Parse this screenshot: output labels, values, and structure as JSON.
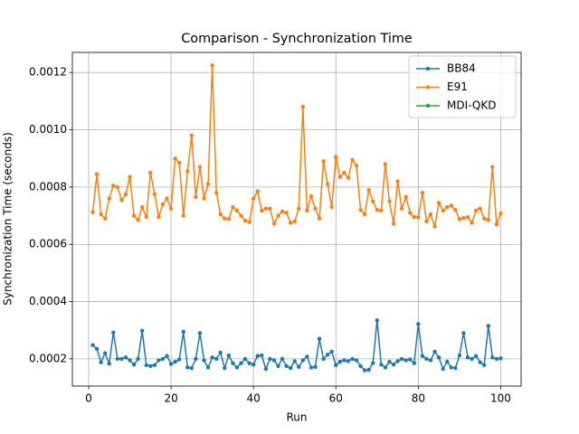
{
  "chart_data": {
    "type": "line",
    "title": "Comparison - Synchronization Time",
    "xlabel": "Run",
    "ylabel": "Synchronization Time (seconds)",
    "x": [
      1,
      2,
      3,
      4,
      5,
      6,
      7,
      8,
      9,
      10,
      11,
      12,
      13,
      14,
      15,
      16,
      17,
      18,
      19,
      20,
      21,
      22,
      23,
      24,
      25,
      26,
      27,
      28,
      29,
      30,
      31,
      32,
      33,
      34,
      35,
      36,
      37,
      38,
      39,
      40,
      41,
      42,
      43,
      44,
      45,
      46,
      47,
      48,
      49,
      50,
      51,
      52,
      53,
      54,
      55,
      56,
      57,
      58,
      59,
      60,
      61,
      62,
      63,
      64,
      65,
      66,
      67,
      68,
      69,
      70,
      71,
      72,
      73,
      74,
      75,
      76,
      77,
      78,
      79,
      80,
      81,
      82,
      83,
      84,
      85,
      86,
      87,
      88,
      89,
      90,
      91,
      92,
      93,
      94,
      95,
      96,
      97,
      98,
      99,
      100
    ],
    "series": [
      {
        "name": "BB84",
        "color": "#1f77b4",
        "values": [
          0.000248,
          0.000235,
          0.000188,
          0.00022,
          0.000183,
          0.000292,
          0.0002,
          0.0002,
          0.000205,
          0.000195,
          0.00018,
          0.0002,
          0.000298,
          0.000178,
          0.000175,
          0.000178,
          0.000195,
          0.0002,
          0.00021,
          0.000182,
          0.00019,
          0.000198,
          0.000295,
          0.00017,
          0.000168,
          0.0002,
          0.00029,
          0.000195,
          0.00017,
          0.000205,
          0.0002,
          0.000222,
          0.000168,
          0.000212,
          0.000185,
          0.00017,
          0.000185,
          0.0002,
          0.000185,
          0.00018,
          0.00021,
          0.000212,
          0.000165,
          0.0002,
          0.000195,
          0.000175,
          0.0002,
          0.000175,
          0.000168,
          0.000192,
          0.000172,
          0.000195,
          0.000208,
          0.00017,
          0.000172,
          0.00027,
          0.0002,
          0.000215,
          0.000225,
          0.000178,
          0.00019,
          0.000195,
          0.000192,
          0.0002,
          0.000195,
          0.000175,
          0.00016,
          0.000162,
          0.000185,
          0.000335,
          0.00018,
          0.00017,
          0.00019,
          0.00018,
          0.000192,
          0.0002,
          0.000195,
          0.000198,
          0.000185,
          0.000322,
          0.00021,
          0.0002,
          0.000195,
          0.000225,
          0.000205,
          0.000165,
          0.00019,
          0.00017,
          0.000168,
          0.000212,
          0.00029,
          0.000205,
          0.0002,
          0.00021,
          0.000188,
          0.000178,
          0.000315,
          0.000205,
          0.0002,
          0.000202
        ]
      },
      {
        "name": "E91",
        "color": "#ff7f0e",
        "values": [
          0.000712,
          0.000845,
          0.000705,
          0.00069,
          0.00076,
          0.000805,
          0.0008,
          0.000755,
          0.000775,
          0.000835,
          0.0007,
          0.000685,
          0.00073,
          0.000695,
          0.00085,
          0.000775,
          0.000695,
          0.00074,
          0.00076,
          0.000725,
          0.0009,
          0.000885,
          0.0007,
          0.000855,
          0.00098,
          0.000765,
          0.00087,
          0.00076,
          0.00081,
          0.001225,
          0.00078,
          0.000705,
          0.00069,
          0.000688,
          0.00073,
          0.000718,
          0.0007,
          0.000682,
          0.000678,
          0.00076,
          0.000785,
          0.000718,
          0.000725,
          0.000725,
          0.000672,
          0.0007,
          0.000715,
          0.00071,
          0.000675,
          0.00068,
          0.000725,
          0.00108,
          0.000718,
          0.000768,
          0.000725,
          0.00069,
          0.00089,
          0.00081,
          0.00073,
          0.000905,
          0.000835,
          0.00085,
          0.000832,
          0.000895,
          0.000875,
          0.00072,
          0.000705,
          0.00079,
          0.00075,
          0.00072,
          0.000718,
          0.00088,
          0.00075,
          0.000672,
          0.00082,
          0.000725,
          0.000765,
          0.00071,
          0.000695,
          0.000695,
          0.00078,
          0.00068,
          0.000705,
          0.000662,
          0.000745,
          0.000718,
          0.00073,
          0.000735,
          0.00072,
          0.000688,
          0.000692,
          0.000695,
          0.000675,
          0.000718,
          0.000725,
          0.00069,
          0.000685,
          0.00087,
          0.00067,
          0.000708
        ]
      },
      {
        "name": "MDI-QKD",
        "color": "#2ca02c",
        "values": [
          null,
          null,
          null,
          null,
          null,
          null,
          null,
          null,
          null,
          null,
          null,
          null,
          null,
          null,
          null,
          null,
          null,
          null,
          null,
          null,
          null,
          null,
          null,
          null,
          null,
          null,
          null,
          null,
          null,
          null,
          null,
          null,
          null,
          null,
          null,
          null,
          null,
          null,
          null,
          null,
          null,
          null,
          null,
          null,
          null,
          null,
          null,
          null,
          null,
          null,
          null,
          null,
          null,
          null,
          null,
          null,
          null,
          null,
          null,
          null,
          null,
          null,
          null,
          null,
          null,
          null,
          null,
          null,
          null,
          null,
          null,
          null,
          null,
          null,
          null,
          null,
          null,
          null,
          null,
          null,
          null,
          null,
          null,
          null,
          null,
          null,
          null,
          null,
          null,
          null,
          null,
          null,
          null,
          null,
          null,
          null,
          null,
          null,
          null,
          null
        ]
      }
    ],
    "xlim": [
      -3.95,
      104.95
    ],
    "xticks": [
      0,
      20,
      40,
      60,
      80,
      100
    ],
    "ylim": [
      0.000105,
      0.00127
    ],
    "yticks": [
      0.0002,
      0.0004,
      0.0006,
      0.0008,
      {
        "value": 0.001,
        "label": "0.0010"
      },
      0.0012
    ],
    "grid": true,
    "legend": "upper right"
  }
}
